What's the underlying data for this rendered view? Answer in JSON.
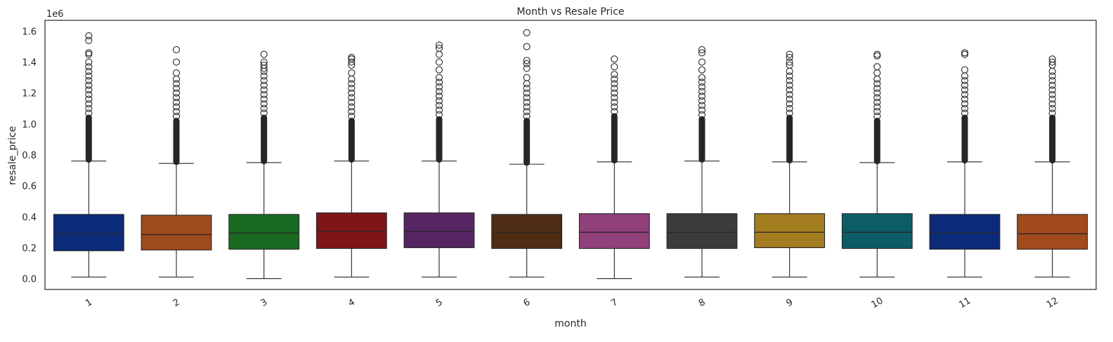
{
  "chart_data": {
    "type": "box",
    "title": "Month vs Resale Price",
    "xlabel": "month",
    "ylabel": "resale_price",
    "y_offset_label": "1e6",
    "categories": [
      "1",
      "2",
      "3",
      "4",
      "5",
      "6",
      "7",
      "8",
      "9",
      "10",
      "11",
      "12"
    ],
    "y_ticks": [
      0.0,
      0.2,
      0.4,
      0.6,
      0.8,
      1.0,
      1.2,
      1.4,
      1.6
    ],
    "y_tick_labels": [
      "0.0",
      "0.2",
      "0.4",
      "0.6",
      "0.8",
      "1.0",
      "1.2",
      "1.4",
      "1.6"
    ],
    "ylim": [
      -0.07,
      1.67
    ],
    "grid": false,
    "x_tick_rotation_deg": -30,
    "boxes": [
      {
        "category": "1",
        "whisker_low": 0.01,
        "q1": 0.18,
        "median": 0.29,
        "q3": 0.415,
        "whisker_high": 0.76,
        "outlier_dense_max": 1.04,
        "outliers": [
          1.07,
          1.1,
          1.13,
          1.16,
          1.19,
          1.22,
          1.25,
          1.28,
          1.31,
          1.34,
          1.37,
          1.4,
          1.45,
          1.46,
          1.54,
          1.57
        ],
        "color": "#0b2a7a"
      },
      {
        "category": "2",
        "whisker_low": 0.01,
        "q1": 0.185,
        "median": 0.285,
        "q3": 0.41,
        "whisker_high": 0.745,
        "outlier_dense_max": 1.02,
        "outliers": [
          1.05,
          1.08,
          1.11,
          1.14,
          1.17,
          1.2,
          1.23,
          1.26,
          1.29,
          1.33,
          1.4,
          1.48
        ],
        "color": "#9f4a1d"
      },
      {
        "category": "3",
        "whisker_low": 0.0,
        "q1": 0.19,
        "median": 0.295,
        "q3": 0.415,
        "whisker_high": 0.75,
        "outlier_dense_max": 1.04,
        "outliers": [
          1.07,
          1.1,
          1.13,
          1.16,
          1.19,
          1.22,
          1.25,
          1.28,
          1.31,
          1.34,
          1.36,
          1.38,
          1.4,
          1.45
        ],
        "color": "#1a6a22"
      },
      {
        "category": "4",
        "whisker_low": 0.01,
        "q1": 0.195,
        "median": 0.305,
        "q3": 0.425,
        "whisker_high": 0.76,
        "outlier_dense_max": 1.02,
        "outliers": [
          1.05,
          1.08,
          1.11,
          1.14,
          1.17,
          1.2,
          1.23,
          1.26,
          1.29,
          1.33,
          1.38,
          1.4,
          1.42,
          1.43
        ],
        "color": "#7e1616"
      },
      {
        "category": "5",
        "whisker_low": 0.01,
        "q1": 0.2,
        "median": 0.305,
        "q3": 0.425,
        "whisker_high": 0.76,
        "outlier_dense_max": 1.03,
        "outliers": [
          1.06,
          1.09,
          1.12,
          1.15,
          1.18,
          1.21,
          1.24,
          1.27,
          1.3,
          1.35,
          1.4,
          1.45,
          1.49,
          1.51
        ],
        "color": "#562563"
      },
      {
        "category": "6",
        "whisker_low": 0.01,
        "q1": 0.195,
        "median": 0.3,
        "q3": 0.415,
        "whisker_high": 0.74,
        "outlier_dense_max": 1.02,
        "outliers": [
          1.05,
          1.08,
          1.11,
          1.14,
          1.17,
          1.2,
          1.23,
          1.26,
          1.3,
          1.36,
          1.39,
          1.41,
          1.5,
          1.59
        ],
        "color": "#4f2c14"
      },
      {
        "category": "7",
        "whisker_low": 0.0,
        "q1": 0.195,
        "median": 0.3,
        "q3": 0.42,
        "whisker_high": 0.755,
        "outlier_dense_max": 1.05,
        "outliers": [
          1.08,
          1.11,
          1.14,
          1.17,
          1.2,
          1.23,
          1.26,
          1.29,
          1.32,
          1.37,
          1.42
        ],
        "color": "#91407a"
      },
      {
        "category": "8",
        "whisker_low": 0.01,
        "q1": 0.195,
        "median": 0.3,
        "q3": 0.42,
        "whisker_high": 0.76,
        "outlier_dense_max": 1.03,
        "outliers": [
          1.06,
          1.09,
          1.12,
          1.15,
          1.18,
          1.21,
          1.24,
          1.27,
          1.3,
          1.35,
          1.4,
          1.46,
          1.48
        ],
        "color": "#3b3b3b"
      },
      {
        "category": "9",
        "whisker_low": 0.01,
        "q1": 0.2,
        "median": 0.3,
        "q3": 0.42,
        "whisker_high": 0.755,
        "outlier_dense_max": 1.04,
        "outliers": [
          1.07,
          1.1,
          1.13,
          1.16,
          1.19,
          1.22,
          1.25,
          1.28,
          1.31,
          1.34,
          1.38,
          1.4,
          1.43,
          1.45
        ],
        "color": "#a27c1f"
      },
      {
        "category": "10",
        "whisker_low": 0.01,
        "q1": 0.195,
        "median": 0.3,
        "q3": 0.42,
        "whisker_high": 0.75,
        "outlier_dense_max": 1.02,
        "outliers": [
          1.05,
          1.08,
          1.11,
          1.14,
          1.17,
          1.2,
          1.23,
          1.26,
          1.29,
          1.33,
          1.37,
          1.44,
          1.45
        ],
        "color": "#0d5d66"
      },
      {
        "category": "11",
        "whisker_low": 0.01,
        "q1": 0.19,
        "median": 0.295,
        "q3": 0.415,
        "whisker_high": 0.755,
        "outlier_dense_max": 1.04,
        "outliers": [
          1.07,
          1.1,
          1.13,
          1.16,
          1.19,
          1.22,
          1.25,
          1.28,
          1.31,
          1.35,
          1.45,
          1.46
        ],
        "color": "#0b2a7a"
      },
      {
        "category": "12",
        "whisker_low": 0.01,
        "q1": 0.19,
        "median": 0.29,
        "q3": 0.415,
        "whisker_high": 0.755,
        "outlier_dense_max": 1.04,
        "outliers": [
          1.07,
          1.1,
          1.13,
          1.16,
          1.19,
          1.22,
          1.25,
          1.28,
          1.31,
          1.34,
          1.38,
          1.4,
          1.42
        ],
        "color": "#a14b1e"
      }
    ]
  }
}
